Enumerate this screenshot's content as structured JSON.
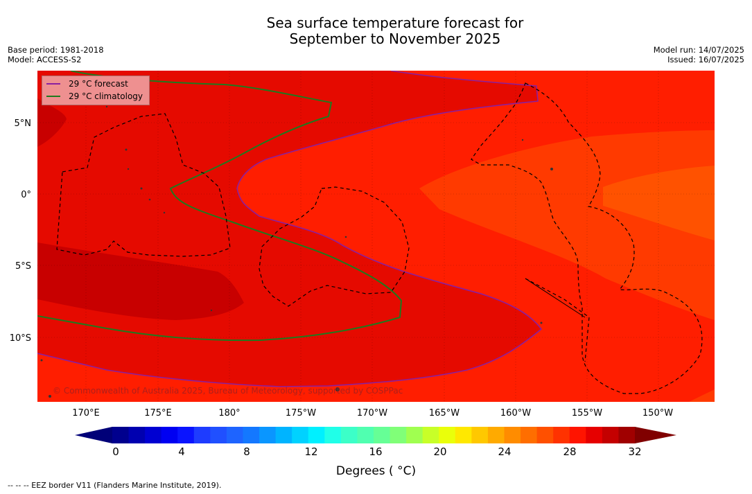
{
  "title": {
    "line1": "Sea surface temperature forecast for",
    "line2": "September to November 2025"
  },
  "meta": {
    "base_period": "Base period: 1981-2018",
    "model": "Model: ACCESS-S2",
    "model_run": "Model run: 14/07/2025",
    "issued": "Issued: 16/07/2025"
  },
  "legend": {
    "forecast_label": "29 °C  forecast",
    "climatology_label": "29 °C  climatology",
    "forecast_color": "#8a1fa0",
    "climatology_color": "#1e7a1e"
  },
  "axes": {
    "latitude_labels": [
      "5°N",
      "0°",
      "5°S",
      "10°S"
    ],
    "longitude_labels": [
      "170°E",
      "175°E",
      "180°",
      "175°W",
      "170°W",
      "165°W",
      "160°W",
      "155°W",
      "150°W"
    ]
  },
  "colorbar": {
    "title": "Degrees ( °C)",
    "tick_labels": [
      "0",
      "4",
      "8",
      "12",
      "16",
      "20",
      "24",
      "28",
      "32"
    ],
    "colors": [
      "#00008e",
      "#0000b0",
      "#0000d2",
      "#0000f2",
      "#0a14ff",
      "#1e3cff",
      "#2050ff",
      "#1e64ff",
      "#1478ff",
      "#0a96ff",
      "#00b4ff",
      "#00d2ff",
      "#00f0ff",
      "#20ffe8",
      "#3cffc8",
      "#50ffb0",
      "#66ff96",
      "#80ff78",
      "#a0ff50",
      "#c8ff28",
      "#eaff0a",
      "#ffe800",
      "#ffc800",
      "#ffaa00",
      "#ff8c00",
      "#ff6e00",
      "#ff5000",
      "#ff3200",
      "#ff1400",
      "#e60000",
      "#c40000",
      "#a00000"
    ],
    "under_color": "#000078",
    "over_color": "#800000"
  },
  "map_colors": {
    "range_26_27": "#ff5200",
    "range_27_28": "#ff3a00",
    "range_28_29": "#ff1e00",
    "range_29_30": "#e50a00",
    "range_30_31": "#c80000"
  },
  "copyright": "© Commonwealth of Australia 2025, Bureau of Meteorology, supported by COSPPac",
  "footnote": "--  --  -- EEZ border V11 (Flanders Marine Institute, 2019)."
}
